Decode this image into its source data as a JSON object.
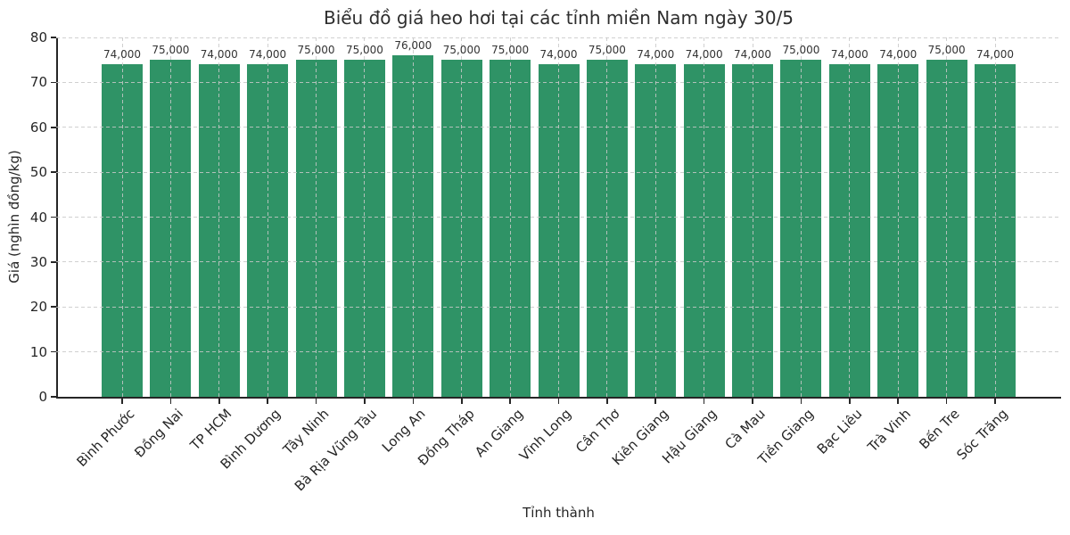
{
  "chart_data": {
    "type": "bar",
    "title": "Biểu đồ giá heo hơi tại các tỉnh miền Nam ngày 30/5",
    "xlabel": "Tỉnh thành",
    "ylabel": "Giá (nghìn đồng/kg)",
    "categories": [
      "Bình Phước",
      "Đồng Nai",
      "TP HCM",
      "Bình Dương",
      "Tây Ninh",
      "Bà Rịa  Vũng Tàu",
      "Long An",
      "Đồng Tháp",
      "An Giang",
      "Vĩnh Long",
      "Cần Thơ",
      "Kiên Giang",
      "Hậu Giang",
      "Cà Mau",
      "Tiền Giang",
      "Bạc Liêu",
      "Trà Vinh",
      "Bến Tre",
      "Sóc Trăng"
    ],
    "values": [
      74,
      75,
      74,
      74,
      75,
      75,
      76,
      75,
      75,
      74,
      75,
      74,
      74,
      74,
      75,
      74,
      74,
      75,
      74
    ],
    "value_labels": [
      "74,000",
      "75,000",
      "74,000",
      "74,000",
      "75,000",
      "75,000",
      "76,000",
      "75,000",
      "75,000",
      "74,000",
      "75,000",
      "74,000",
      "74,000",
      "74,000",
      "75,000",
      "74,000",
      "74,000",
      "75,000",
      "74,000"
    ],
    "ylim": [
      0,
      80
    ],
    "yticks": [
      0,
      10,
      20,
      30,
      40,
      50,
      60,
      70,
      80
    ],
    "grid": "dashed-both-axes-over-bars",
    "legend": "none",
    "bar_color": "#2f9366",
    "axis_color": "#262626",
    "grid_color": "#c8c8c8",
    "units_note": "values in nghìn đồng/kg, labels in đồng/kg"
  }
}
